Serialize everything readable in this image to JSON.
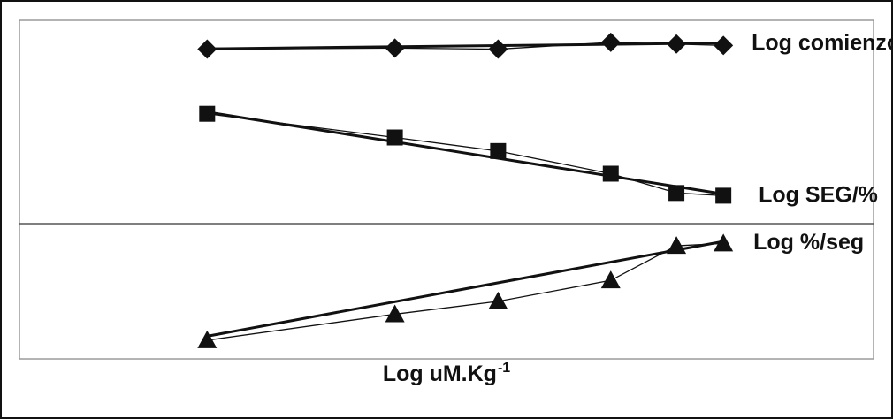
{
  "chart_data": {
    "type": "line",
    "xlabel": "Log uM.Kg",
    "xlabel_superscript": "-1",
    "ylabel": "",
    "x_tick_labels": false,
    "y_tick_labels": false,
    "grid": "single horizontal divider line",
    "x": [
      1.0,
      2.0,
      2.55,
      3.15,
      3.5,
      3.75
    ],
    "xlim": [
      0,
      4.55
    ],
    "ylim": [
      0,
      1
    ],
    "colors": {
      "series": "#111111",
      "frame": "#111111",
      "plot_border": "#9a9a9a"
    },
    "series": [
      {
        "name": "Log comienzo",
        "marker": "diamond",
        "values": [
          0.915,
          0.918,
          0.915,
          0.935,
          0.93,
          0.926
        ],
        "fit": [
          0.916,
          0.933
        ]
      },
      {
        "name": "Log SEG/%",
        "marker": "square",
        "values": [
          0.724,
          0.654,
          0.614,
          0.547,
          0.49,
          0.482
        ],
        "fit": [
          0.729,
          0.487
        ]
      },
      {
        "name": "Log %/seg",
        "marker": "triangle",
        "values": [
          0.055,
          0.132,
          0.17,
          0.232,
          0.334,
          0.341
        ],
        "fit": [
          0.067,
          0.347
        ]
      }
    ]
  }
}
